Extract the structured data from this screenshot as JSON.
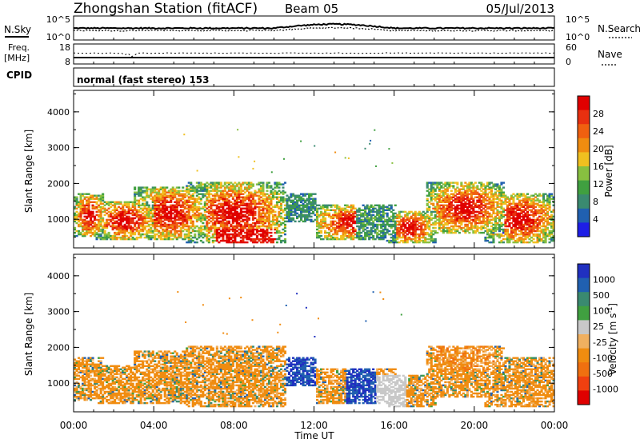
{
  "header": {
    "station": "Zhongshan Station (fitACF)",
    "beam": "Beam 05",
    "date": "05/Jul/2013"
  },
  "noise_panel": {
    "left_label": "N.Sky",
    "right_label": "N.Search",
    "left_ticks": [
      "10^5",
      "10^0"
    ],
    "right_ticks": [
      "10^5",
      "10^0"
    ]
  },
  "freq_panel": {
    "left_label_line1": "Freq.",
    "left_label_line2": "[MHz]",
    "right_label": "Nave",
    "left_ticks": [
      "18",
      "8"
    ],
    "right_ticks": [
      "60",
      "0"
    ]
  },
  "cpid": {
    "label": "CPID",
    "value": "normal (fast stereo) 153"
  },
  "colors": {
    "power": [
      "#1e1ee6",
      "#2060b0",
      "#3a8a70",
      "#40a040",
      "#88c040",
      "#f0c020",
      "#f08c10",
      "#f06010",
      "#e83010",
      "#e00000"
    ],
    "velocity": [
      "#e00000",
      "#f04010",
      "#f07010",
      "#f08c10",
      "#f0b060",
      "#c8c8c8",
      "#40a040",
      "#3a8a70",
      "#2060b0",
      "#2030c0"
    ]
  },
  "chart_data": [
    {
      "type": "heatmap",
      "panel": "power",
      "ylabel": "Slant Range [km]",
      "ytick_labels": [
        "1000",
        "2000",
        "3000",
        "4000"
      ],
      "ylim": [
        200,
        4600
      ],
      "xtick_labels": [
        "00:00",
        "04:00",
        "08:00",
        "12:00",
        "16:00",
        "20:00",
        "00:00"
      ],
      "xlim_hours": [
        0,
        24
      ],
      "colorbar": {
        "label": "Power [dB]",
        "tick_labels": [
          "4",
          "8",
          "12",
          "16",
          "20",
          "24",
          "28"
        ],
        "range": [
          0,
          30
        ]
      }
    },
    {
      "type": "heatmap",
      "panel": "velocity",
      "ylabel": "Slant Range [km]",
      "ytick_labels": [
        "1000",
        "2000",
        "3000",
        "4000"
      ],
      "ylim": [
        200,
        4600
      ],
      "xlabel": "Time UT",
      "xtick_labels": [
        "00:00",
        "04:00",
        "08:00",
        "12:00",
        "16:00",
        "20:00",
        "00:00"
      ],
      "xlim_hours": [
        0,
        24
      ],
      "colorbar": {
        "label": "Velocity [m s",
        "label_superscript": "-1",
        "label_close": "]",
        "tick_labels": [
          "1000",
          "500",
          "100",
          "25",
          "-25",
          "-100",
          "-500",
          "-1000"
        ]
      }
    }
  ]
}
